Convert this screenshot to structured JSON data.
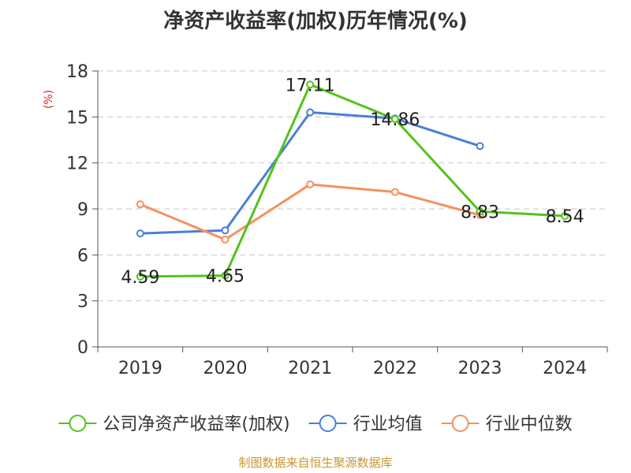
{
  "chart_data": {
    "type": "line",
    "title": "净资产收益率(加权)历年情况(%)",
    "ylabel": "(%)",
    "categories": [
      "2019",
      "2020",
      "2021",
      "2022",
      "2023",
      "2024"
    ],
    "ylim": [
      0,
      18
    ],
    "yticks": [
      0,
      3,
      6,
      9,
      12,
      15,
      18
    ],
    "ytick_labels": [
      "0",
      "3",
      "6",
      "9",
      "12",
      "15",
      "18"
    ],
    "grid": true,
    "legend_position": "bottom",
    "series": [
      {
        "name": "公司净资产收益率(加权)",
        "color": "#52c41a",
        "values": [
          4.59,
          4.65,
          17.11,
          14.86,
          8.83,
          8.54
        ],
        "labels": [
          "4.59",
          "4.65",
          "17.11",
          "14.86",
          "8.83",
          "8.54"
        ]
      },
      {
        "name": "行业均值",
        "color": "#4a7fd6",
        "values": [
          7.4,
          7.6,
          15.3,
          14.9,
          13.1,
          null
        ]
      },
      {
        "name": "行业中位数",
        "color": "#f5915c",
        "values": [
          9.3,
          7.0,
          10.6,
          10.1,
          8.6,
          null
        ]
      }
    ]
  },
  "source": "制图数据来自恒生聚源数据库"
}
